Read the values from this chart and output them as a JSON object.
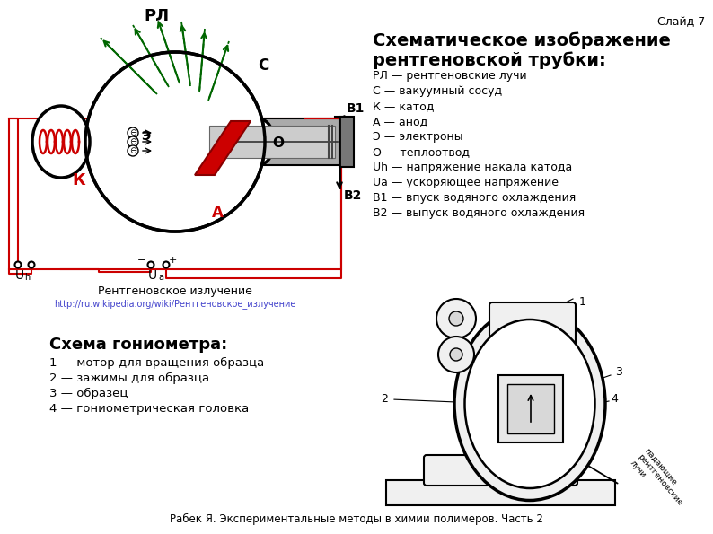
{
  "slide_label": "Слайд 7",
  "title_line1": "Схематическое изображение",
  "title_line2": "рентгеновской трубки:",
  "legend_items": [
    "РЛ — рентгеновские лучи",
    "С — вакуумный сосуд",
    "К — катод",
    "А — анод",
    "Э — электроны",
    "О — теплоотвод",
    "Uh — напряжение накала катода",
    "Ua — ускоряющее напряжение",
    "В1 — впуск водяного охлаждения",
    "В2 — выпуск водяного охлаждения"
  ],
  "caption_main": "Рентгеновское излучение",
  "caption_url": "http://ru.wikipedia.org/wiki/Рентгеновское_излучение",
  "goniometer_title": "Схема гониометра:",
  "goniometer_items": [
    "1 — мотор для вращения образца",
    "2 — зажимы для образца",
    "3 — образец",
    "4 — гониометрическая головка"
  ],
  "footer": "Рабек Я. Экспериментальные методы в химии полимеров. Часть 2",
  "bg_color": "#ffffff",
  "text_color": "#000000",
  "green_color": "#006600",
  "red_color": "#cc0000",
  "gray_color": "#888888",
  "link_color": "#4444cc",
  "border_color": "#cc0000",
  "coil_color": "#cc0000"
}
